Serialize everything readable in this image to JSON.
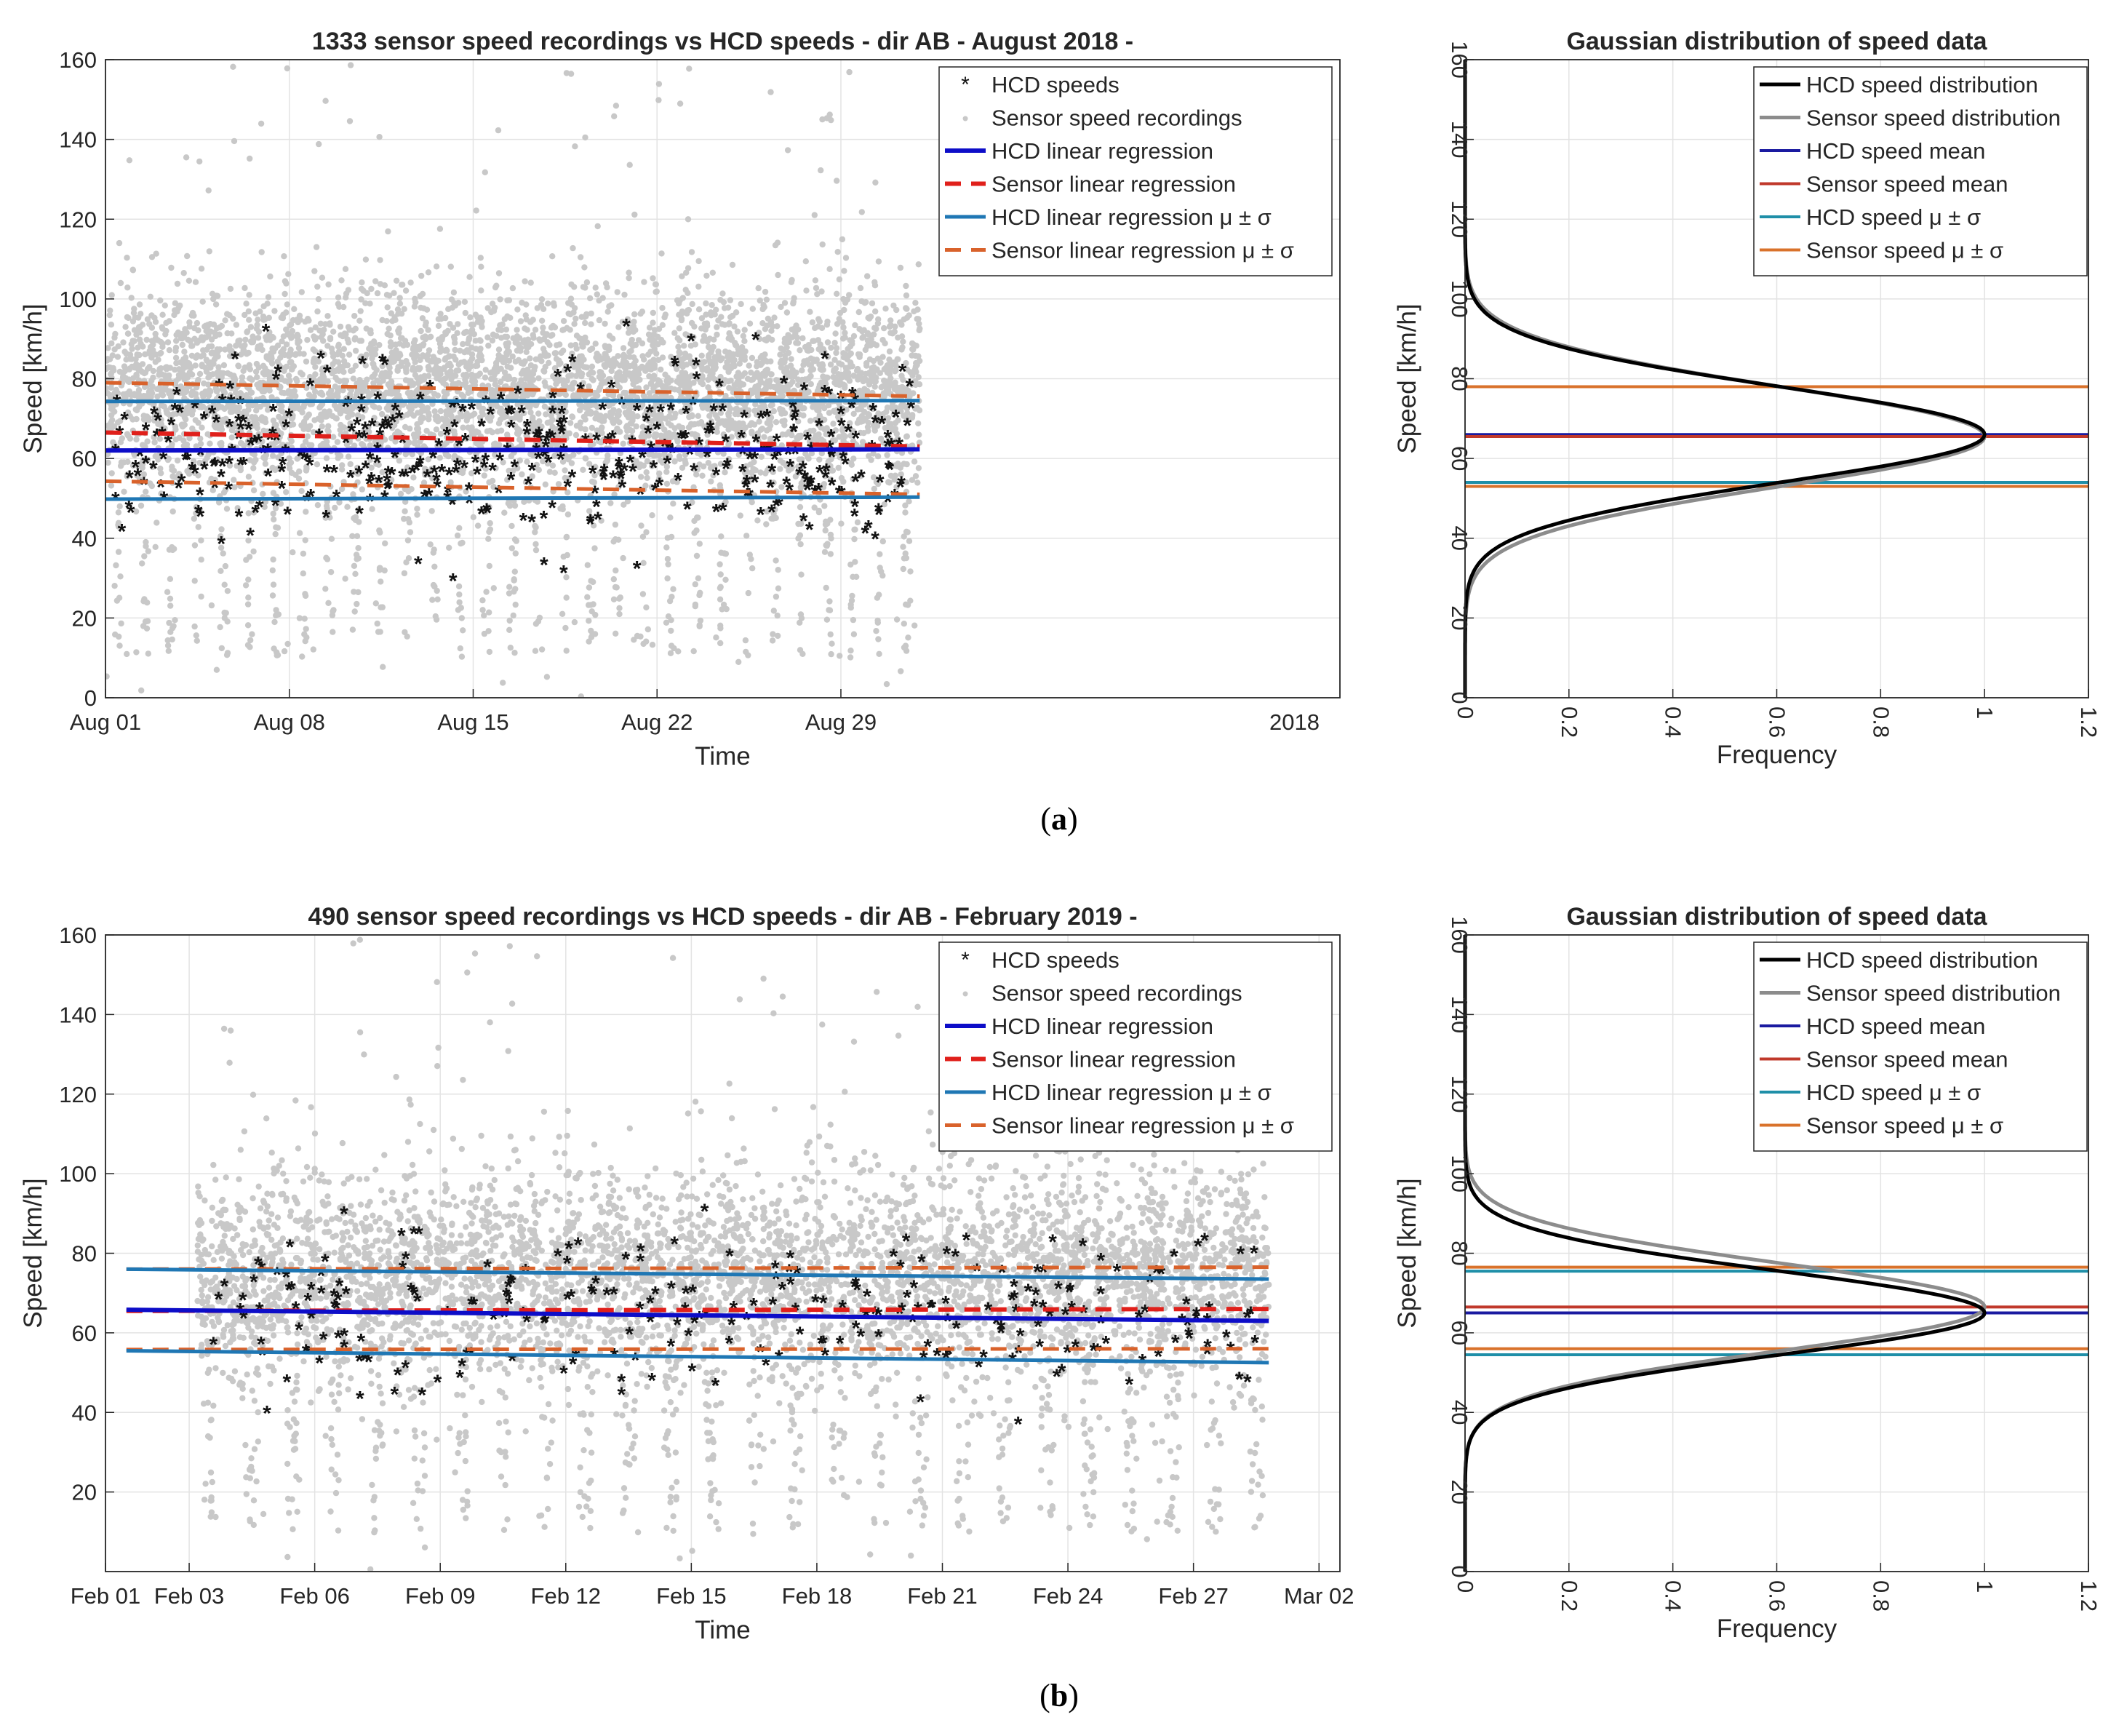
{
  "panels": [
    {
      "caption_label": "a",
      "scatter": {
        "title": "1333 sensor speed recordings vs HCD speeds - dir AB - August 2018 -",
        "xlabel": "Time",
        "ylabel": "Speed [km/h]",
        "year_label": "2018",
        "ylim": [
          0,
          160
        ],
        "yticks": [
          "0",
          "20",
          "40",
          "60",
          "80",
          "100",
          "120",
          "140",
          "160"
        ],
        "xdomain_days": [
          0,
          47
        ],
        "xticks": [
          {
            "day": 0,
            "label": "Aug 01"
          },
          {
            "day": 7,
            "label": "Aug 08"
          },
          {
            "day": 14,
            "label": "Aug 15"
          },
          {
            "day": 21,
            "label": "Aug 22"
          },
          {
            "day": 28,
            "label": "Aug 29"
          }
        ],
        "data_span_days": [
          0,
          31
        ],
        "sensor_count": 1333,
        "sensor_center": 78,
        "sensor_spread": 12,
        "hcd_seed": 11,
        "hcd_count": 420,
        "hcd_center": 62,
        "hcd_spread": 11,
        "lines": {
          "hcd_reg": [
            62.0,
            62.3
          ],
          "sensor_reg": [
            66.5,
            63.0
          ],
          "hcd_plus": [
            74.3,
            74.5
          ],
          "hcd_minus": [
            49.8,
            50.3
          ],
          "sensor_plus": [
            79.0,
            75.6
          ],
          "sensor_minus": [
            54.3,
            51.0
          ]
        },
        "legend": [
          "HCD speeds",
          "Sensor speed recordings",
          "HCD linear regression",
          "Sensor linear regression",
          "HCD linear regression μ ± σ",
          "Sensor linear regression μ ± σ"
        ]
      },
      "gauss": {
        "title": "Gaussian distribution of speed data",
        "xlabel": "Frequency",
        "ylabel": "Speed [km/h]",
        "ylim": [
          0,
          160
        ],
        "xlim": [
          0,
          1.2
        ],
        "yticks": [
          "0",
          "20",
          "40",
          "60",
          "80",
          "100",
          "120",
          "140",
          "160"
        ],
        "xticks": [
          "0",
          "0.2",
          "0.4",
          "0.6",
          "0.8",
          "1",
          "1.2"
        ],
        "hcd_mean": 66,
        "hcd_sigma": 12,
        "sensor_mean": 65.5,
        "sensor_sigma": 12.5,
        "hcd_plus": 78,
        "hcd_minus": 54,
        "sensor_plus": 78,
        "sensor_minus": 53,
        "legend": [
          "HCD speed distribution",
          "Sensor speed distribution",
          "HCD speed mean",
          "Sensor speed mean",
          "HCD speed μ ± σ",
          "Sensor speed μ ± σ"
        ]
      }
    },
    {
      "caption_label": "b",
      "scatter": {
        "title": "490 sensor speed recordings vs HCD speeds - dir AB - February 2019 -",
        "xlabel": "Time",
        "ylabel": "Speed [km/h]",
        "year_label": "",
        "ylim": [
          0,
          160
        ],
        "yticks": [
          "20",
          "40",
          "60",
          "80",
          "100",
          "120",
          "140",
          "160"
        ],
        "xdomain_days": [
          0,
          29.5
        ],
        "xticks": [
          {
            "day": 0,
            "label": "Feb 01"
          },
          {
            "day": 2,
            "label": "Feb 03"
          },
          {
            "day": 5,
            "label": "Feb 06"
          },
          {
            "day": 8,
            "label": "Feb 09"
          },
          {
            "day": 11,
            "label": "Feb 12"
          },
          {
            "day": 14,
            "label": "Feb 15"
          },
          {
            "day": 17,
            "label": "Feb 18"
          },
          {
            "day": 20,
            "label": "Feb 21"
          },
          {
            "day": 23,
            "label": "Feb 24"
          },
          {
            "day": 26,
            "label": "Feb 27"
          },
          {
            "day": 29,
            "label": "Mar 02"
          }
        ],
        "data_span_days": [
          2.2,
          27.8
        ],
        "sensor_count": 490,
        "sensor_center": 75,
        "sensor_spread": 13,
        "hcd_seed": 23,
        "hcd_count": 260,
        "hcd_center": 65,
        "hcd_spread": 10,
        "lines": {
          "hcd_reg": [
            65.8,
            63.0
          ],
          "sensor_reg": [
            65.5,
            66.0
          ],
          "hcd_plus": [
            76.0,
            73.5
          ],
          "hcd_minus": [
            55.5,
            52.5
          ],
          "sensor_plus": [
            76.0,
            76.5
          ],
          "sensor_minus": [
            55.8,
            56.0
          ]
        },
        "reg_span_days": [
          0.5,
          27.8
        ],
        "legend": [
          "HCD speeds",
          "Sensor speed recordings",
          "HCD linear regression",
          "Sensor linear regression",
          "HCD linear regression μ ± σ",
          "Sensor linear regression μ ± σ"
        ]
      },
      "gauss": {
        "title": "Gaussian distribution of speed data",
        "xlabel": "Frequency",
        "ylabel": "Speed [km/h]",
        "ylim": [
          0,
          160
        ],
        "xlim": [
          0,
          1.2
        ],
        "yticks": [
          "0",
          "20",
          "40",
          "60",
          "80",
          "100",
          "120",
          "140",
          "160"
        ],
        "xticks": [
          "0",
          "0.2",
          "0.4",
          "0.6",
          "0.8",
          "1",
          "1.2"
        ],
        "hcd_mean": 65,
        "hcd_sigma": 10.5,
        "sensor_mean": 66.5,
        "sensor_sigma": 11,
        "hcd_plus": 75.5,
        "hcd_minus": 54.5,
        "sensor_plus": 76.5,
        "sensor_minus": 56,
        "legend": [
          "HCD speed distribution",
          "Sensor speed distribution",
          "HCD speed mean",
          "Sensor speed mean",
          "HCD speed μ ± σ",
          "Sensor speed μ ± σ"
        ]
      }
    }
  ],
  "chart_data": [
    {
      "type": "scatter",
      "title": "1333 sensor speed recordings vs HCD speeds - dir AB - August 2018 -",
      "xlabel": "Time",
      "ylabel": "Speed [km/h]",
      "ylim": [
        0,
        160
      ],
      "x_tick_labels": [
        "Aug 01",
        "Aug 08",
        "Aug 15",
        "Aug 22",
        "Aug 29",
        "2018"
      ],
      "series": [
        {
          "name": "HCD speeds",
          "mean_kmh": 62
        },
        {
          "name": "Sensor speed recordings",
          "mean_kmh": 78
        },
        {
          "name": "HCD linear regression",
          "start": 62.0,
          "end": 62.3
        },
        {
          "name": "Sensor linear regression",
          "start": 66.5,
          "end": 63.0
        },
        {
          "name": "HCD linear regression μ ± σ",
          "upper": [
            74.3,
            74.5
          ],
          "lower": [
            49.8,
            50.3
          ]
        },
        {
          "name": "Sensor linear regression μ ± σ",
          "upper": [
            79.0,
            75.6
          ],
          "lower": [
            54.3,
            51.0
          ]
        }
      ]
    },
    {
      "type": "line",
      "title": "Gaussian distribution of speed data",
      "xlabel": "Frequency",
      "ylabel": "Speed [km/h]",
      "xlim": [
        0,
        1.2
      ],
      "ylim": [
        0,
        160
      ],
      "series": [
        {
          "name": "HCD speed distribution",
          "mean": 66,
          "sigma": 12
        },
        {
          "name": "Sensor speed distribution",
          "mean": 65.5,
          "sigma": 12.5
        },
        {
          "name": "HCD speed mean",
          "value": 66
        },
        {
          "name": "Sensor speed mean",
          "value": 65.5
        },
        {
          "name": "HCD speed μ ± σ",
          "values": [
            54,
            78
          ]
        },
        {
          "name": "Sensor speed μ ± σ",
          "values": [
            53,
            78
          ]
        }
      ]
    },
    {
      "type": "scatter",
      "title": "490 sensor speed recordings vs HCD speeds - dir AB - February 2019 -",
      "xlabel": "Time",
      "ylabel": "Speed [km/h]",
      "ylim": [
        0,
        160
      ],
      "x_tick_labels": [
        "Feb 01",
        "Feb 03",
        "Feb 06",
        "Feb 09",
        "Feb 12",
        "Feb 15",
        "Feb 18",
        "Feb 21",
        "Feb 24",
        "Feb 27",
        "Mar 02"
      ],
      "series": [
        {
          "name": "HCD speeds",
          "mean_kmh": 65
        },
        {
          "name": "Sensor speed recordings",
          "mean_kmh": 75
        },
        {
          "name": "HCD linear regression",
          "start": 65.8,
          "end": 63.0
        },
        {
          "name": "Sensor linear regression",
          "start": 65.5,
          "end": 66.0
        },
        {
          "name": "HCD linear regression μ ± σ",
          "upper": [
            76.0,
            73.5
          ],
          "lower": [
            55.5,
            52.5
          ]
        },
        {
          "name": "Sensor linear regression μ ± σ",
          "upper": [
            76.0,
            76.5
          ],
          "lower": [
            55.8,
            56.0
          ]
        }
      ]
    },
    {
      "type": "line",
      "title": "Gaussian distribution of speed data",
      "xlabel": "Frequency",
      "ylabel": "Speed [km/h]",
      "xlim": [
        0,
        1.2
      ],
      "ylim": [
        0,
        160
      ],
      "series": [
        {
          "name": "HCD speed distribution",
          "mean": 65,
          "sigma": 10.5
        },
        {
          "name": "Sensor speed distribution",
          "mean": 66.5,
          "sigma": 11
        },
        {
          "name": "HCD speed mean",
          "value": 65
        },
        {
          "name": "Sensor speed mean",
          "value": 66.5
        },
        {
          "name": "HCD speed μ ± σ",
          "values": [
            54.5,
            75.5
          ]
        },
        {
          "name": "Sensor speed μ ± σ",
          "values": [
            56,
            76.5
          ]
        }
      ]
    }
  ],
  "colors": {
    "hcd_reg": "#0d0dc8",
    "sensor_reg": "#e0201b",
    "hcd_band": "#1f77b4",
    "sensor_band": "#d9622b",
    "hcd_mean": "#1a1aa0",
    "sensor_mean": "#c0392b",
    "hcd_sigma": "#1f8fa8",
    "sensor_sigma": "#d9722b",
    "sensor_points": "#c8c8c8",
    "hcd_points": "#111111",
    "hcd_curve": "#000000",
    "sensor_curve": "#8c8c8c"
  }
}
